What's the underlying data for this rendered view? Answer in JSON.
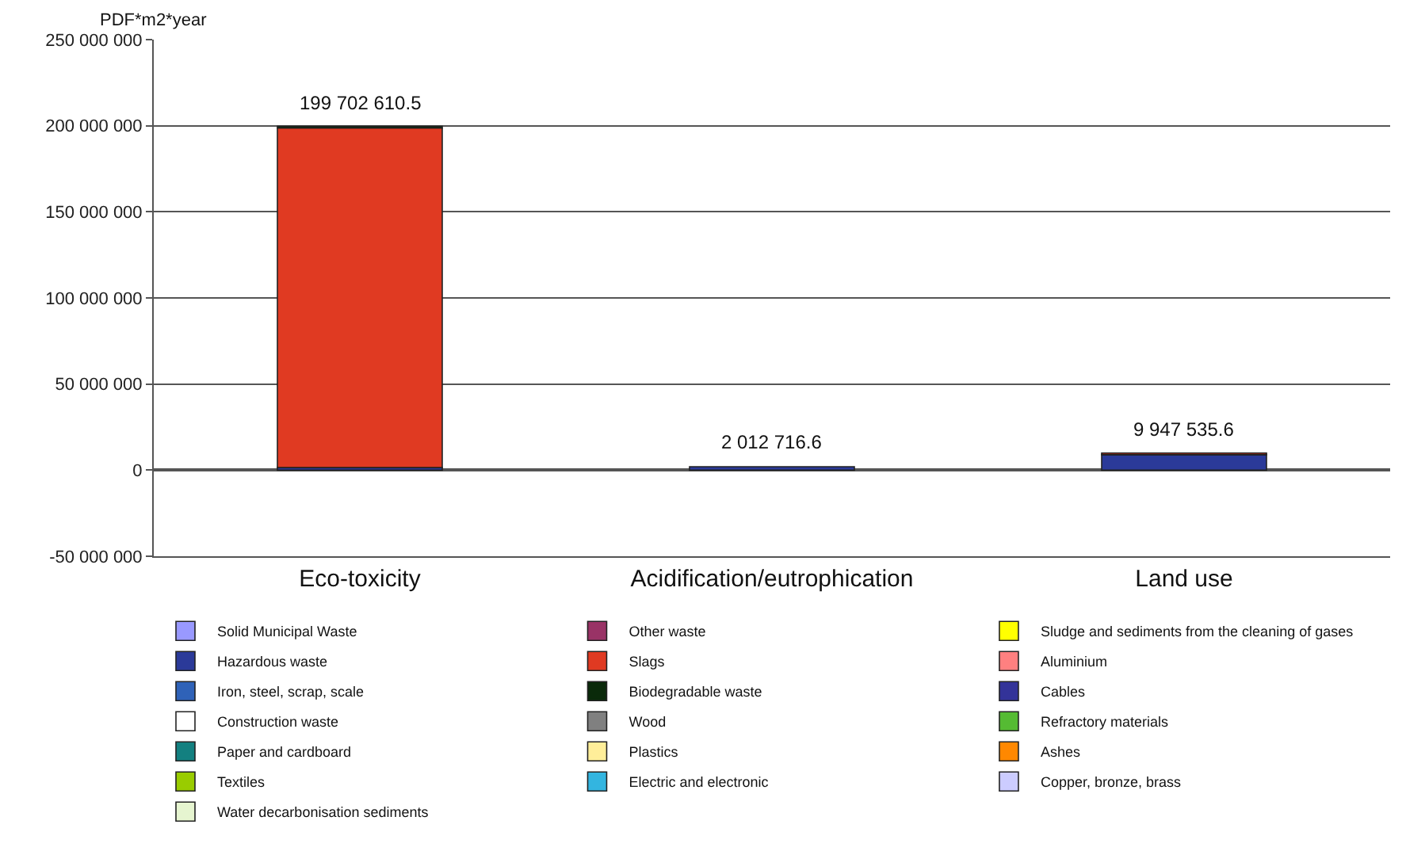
{
  "chart_data": {
    "type": "bar",
    "stacked": true,
    "ylabel": "PDF*m2*year",
    "categories": [
      "Eco-toxicity",
      "Acidification/eutrophication",
      "Land use"
    ],
    "series": [
      {
        "name": "Solid Municipal Waste",
        "color": "#9999ff",
        "values": [
          null,
          null,
          null
        ]
      },
      {
        "name": "Hazardous waste",
        "color": "#2b3a99",
        "values": [
          1500000,
          2012716.6,
          8947535.6
        ]
      },
      {
        "name": "Iron, steel, scrap, scale",
        "color": "#2f62b8",
        "values": [
          null,
          null,
          null
        ]
      },
      {
        "name": "Construction waste",
        "color": "#ffffff",
        "values": [
          null,
          null,
          null
        ]
      },
      {
        "name": "Paper and cardboard",
        "color": "#138080",
        "values": [
          null,
          null,
          null
        ]
      },
      {
        "name": "Textiles",
        "color": "#99cc00",
        "values": [
          null,
          null,
          null
        ]
      },
      {
        "name": "Water decarbonisation sediments",
        "color": "#e6f5d0",
        "values": [
          null,
          null,
          null
        ]
      },
      {
        "name": "Other waste",
        "color": "#993366",
        "values": [
          null,
          null,
          null
        ]
      },
      {
        "name": "Slags",
        "color": "#e03a22",
        "values": [
          197202610.5,
          null,
          1000000
        ]
      },
      {
        "name": "Biodegradable waste",
        "color": "#0a2a0a",
        "values": [
          1000000,
          null,
          null
        ]
      },
      {
        "name": "Wood",
        "color": "#808080",
        "values": [
          null,
          null,
          null
        ]
      },
      {
        "name": "Plastics",
        "color": "#ffee99",
        "values": [
          null,
          null,
          null
        ]
      },
      {
        "name": "Electric and electronic",
        "color": "#33b5e0",
        "values": [
          null,
          null,
          null
        ]
      },
      {
        "name": "Sludge and sediments from the cleaning of gases",
        "color": "#ffff00",
        "values": [
          null,
          null,
          null
        ]
      },
      {
        "name": "Aluminium",
        "color": "#ff8080",
        "values": [
          null,
          null,
          null
        ]
      },
      {
        "name": "Cables",
        "color": "#333399",
        "values": [
          null,
          null,
          null
        ]
      },
      {
        "name": "Refractory materials",
        "color": "#55bb33",
        "values": [
          null,
          null,
          null
        ]
      },
      {
        "name": "Ashes",
        "color": "#ff8800",
        "values": [
          null,
          null,
          null
        ]
      },
      {
        "name": "Copper, bronze, brass",
        "color": "#ccccff",
        "values": [
          null,
          null,
          null
        ]
      }
    ],
    "totals": [
      "199 702 610.5",
      "2 012 716.6",
      "9 947 535.6"
    ],
    "ylim": [
      -50000000,
      250000000
    ],
    "yticks": [
      {
        "value": -50000000,
        "label": "-50 000 000"
      },
      {
        "value": 0,
        "label": "0"
      },
      {
        "value": 50000000,
        "label": "50 000 000"
      },
      {
        "value": 100000000,
        "label": "100 000 000"
      },
      {
        "value": 150000000,
        "label": "150 000 000"
      },
      {
        "value": 200000000,
        "label": "200 000 000"
      },
      {
        "value": 250000000,
        "label": "250 000 000"
      }
    ],
    "grid": "y",
    "legend": "bottom"
  }
}
